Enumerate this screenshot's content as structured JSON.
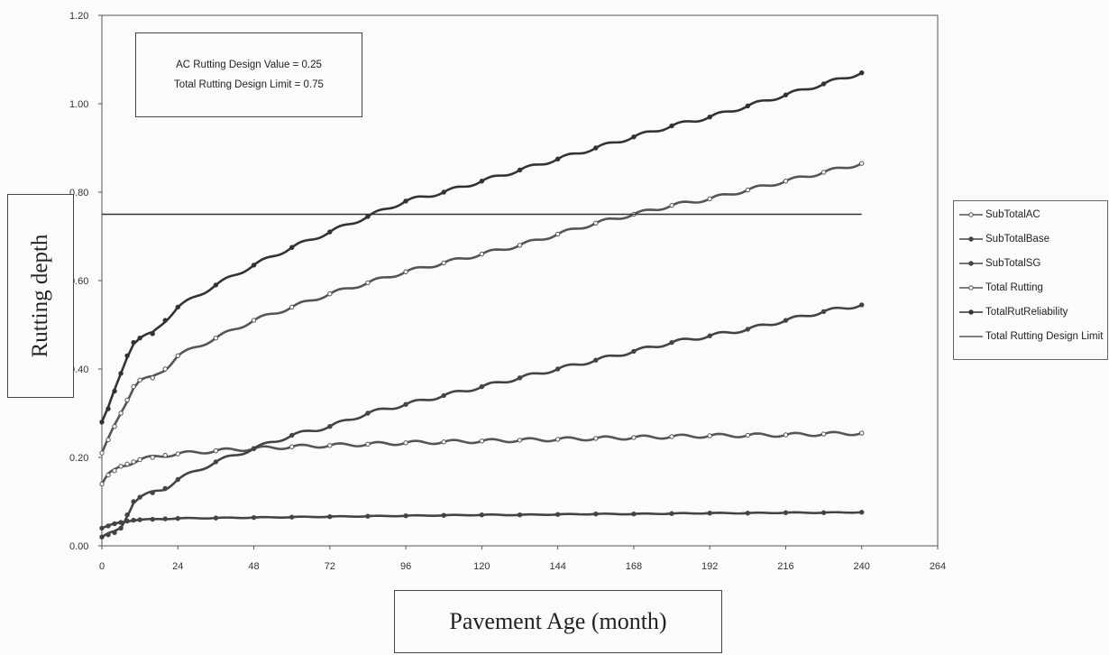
{
  "chart_data": {
    "type": "line",
    "xlabel": "Pavement Age (month)",
    "ylabel": "Rutting depth",
    "xlim": [
      0,
      264
    ],
    "ylim": [
      0,
      1.2
    ],
    "x_ticks": [
      "0",
      "24",
      "48",
      "72",
      "96",
      "120",
      "144",
      "168",
      "192",
      "216",
      "240",
      "264"
    ],
    "y_ticks": [
      "0.00",
      "0.20",
      "0.40",
      "0.60",
      "0.80",
      "1.00",
      "1.20"
    ],
    "annotation": {
      "line1": "AC Rutting Design Value = 0.25",
      "line2": "Total Rutting Design Limit = 0.75"
    },
    "legend_position": "right",
    "x": [
      0,
      2,
      4,
      6,
      8,
      10,
      12,
      16,
      20,
      24,
      36,
      48,
      60,
      72,
      84,
      96,
      108,
      120,
      132,
      144,
      156,
      168,
      180,
      192,
      204,
      216,
      228,
      240
    ],
    "series": [
      {
        "name": "SubTotalAC",
        "color": "#555555",
        "marker": "open",
        "values": [
          0.14,
          0.16,
          0.17,
          0.18,
          0.185,
          0.19,
          0.195,
          0.2,
          0.205,
          0.208,
          0.215,
          0.22,
          0.224,
          0.227,
          0.23,
          0.233,
          0.235,
          0.237,
          0.239,
          0.241,
          0.243,
          0.245,
          0.247,
          0.249,
          0.25,
          0.251,
          0.253,
          0.255
        ]
      },
      {
        "name": "SubTotalBase",
        "color": "#444444",
        "marker": "dot",
        "values": [
          0.04,
          0.045,
          0.05,
          0.053,
          0.056,
          0.058,
          0.059,
          0.06,
          0.061,
          0.062,
          0.063,
          0.064,
          0.065,
          0.066,
          0.067,
          0.068,
          0.069,
          0.07,
          0.07,
          0.071,
          0.072,
          0.072,
          0.073,
          0.074,
          0.074,
          0.075,
          0.075,
          0.076
        ]
      },
      {
        "name": "SubTotalSG",
        "color": "#444444",
        "marker": "dot",
        "values": [
          0.02,
          0.025,
          0.03,
          0.04,
          0.07,
          0.1,
          0.11,
          0.12,
          0.13,
          0.15,
          0.19,
          0.22,
          0.25,
          0.27,
          0.3,
          0.32,
          0.34,
          0.36,
          0.38,
          0.4,
          0.42,
          0.44,
          0.46,
          0.475,
          0.49,
          0.51,
          0.53,
          0.545
        ]
      },
      {
        "name": "Total Rutting",
        "color": "#555555",
        "marker": "open",
        "values": [
          0.21,
          0.24,
          0.27,
          0.3,
          0.33,
          0.36,
          0.375,
          0.38,
          0.4,
          0.43,
          0.47,
          0.51,
          0.54,
          0.57,
          0.595,
          0.62,
          0.64,
          0.66,
          0.68,
          0.705,
          0.73,
          0.75,
          0.77,
          0.785,
          0.805,
          0.825,
          0.845,
          0.865
        ]
      },
      {
        "name": "TotalRutReliability",
        "color": "#333333",
        "marker": "dot",
        "values": [
          0.28,
          0.31,
          0.35,
          0.39,
          0.43,
          0.46,
          0.47,
          0.48,
          0.51,
          0.54,
          0.59,
          0.635,
          0.675,
          0.71,
          0.745,
          0.78,
          0.8,
          0.825,
          0.85,
          0.875,
          0.9,
          0.925,
          0.95,
          0.97,
          0.995,
          1.02,
          1.045,
          1.07
        ]
      },
      {
        "name": "Total Rutting Design Limit",
        "color": "#333333",
        "marker": "none",
        "values": [
          0.75,
          0.75,
          0.75,
          0.75,
          0.75,
          0.75,
          0.75,
          0.75,
          0.75,
          0.75,
          0.75,
          0.75,
          0.75,
          0.75,
          0.75,
          0.75,
          0.75,
          0.75,
          0.75,
          0.75,
          0.75,
          0.75,
          0.75,
          0.75,
          0.75,
          0.75,
          0.75,
          0.75
        ]
      }
    ]
  }
}
